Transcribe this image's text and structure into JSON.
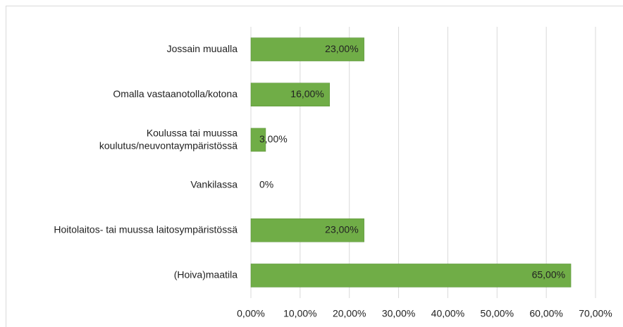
{
  "chart_data": {
    "type": "bar",
    "orientation": "horizontal",
    "categories": [
      "Jossain muualla",
      "Omalla vastaanotolla/kotona",
      "Koulussa tai muussa\nkoulutus/neuvontaympäristössä",
      "Vankilassa",
      "Hoitolaitos- tai muussa laitosympäristössä",
      "(Hoiva)maatila"
    ],
    "values": [
      23,
      16,
      3,
      0,
      23,
      65
    ],
    "value_labels": [
      "23,00%",
      "16,00%",
      "3,00%",
      "0%",
      "23,00%",
      "65,00%"
    ],
    "color": "#70ad47",
    "xlim": [
      0,
      70
    ],
    "xticks": [
      {
        "value": 0,
        "label": "0,00%"
      },
      {
        "value": 10,
        "label": "10,00%"
      },
      {
        "value": 20,
        "label": "20,00%"
      },
      {
        "value": 30,
        "label": "30,00%"
      },
      {
        "value": 40,
        "label": "40,00%"
      },
      {
        "value": 50,
        "label": "50,00%"
      },
      {
        "value": 60,
        "label": "60,00%"
      },
      {
        "value": 70,
        "label": "70,00%"
      }
    ],
    "grid": true
  }
}
